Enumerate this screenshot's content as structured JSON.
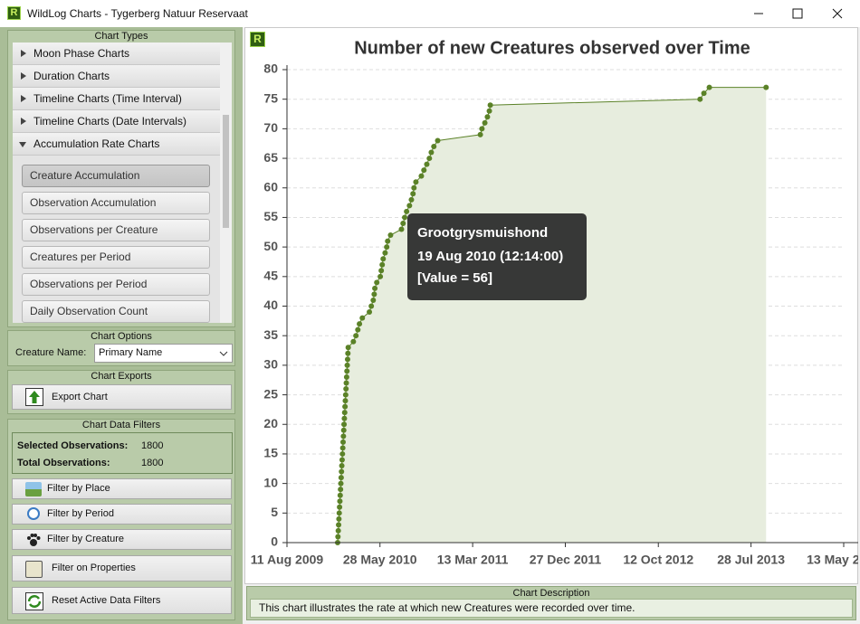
{
  "window": {
    "logo": "R",
    "title": "WildLog Charts - Tygerberg Natuur Reservaat"
  },
  "chart_types": {
    "title": "Chart Types",
    "groups": [
      "Moon Phase Charts",
      "Duration Charts",
      "Timeline Charts (Time Interval)",
      "Timeline Charts (Date Intervals)",
      "Accumulation Rate Charts"
    ],
    "buttons": [
      "Creature Accumulation",
      "Observation Accumulation",
      "Observations per Creature",
      "Creatures per Period",
      "Observations per Period",
      "Daily Observation Count"
    ]
  },
  "chart_options": {
    "title": "Chart Options",
    "label": "Creature Name:",
    "selected": "Primary Name"
  },
  "chart_exports": {
    "title": "Chart Exports",
    "button": "Export Chart"
  },
  "filters": {
    "title": "Chart Data Filters",
    "stats": [
      {
        "label": "Selected Observations:",
        "value": 1800
      },
      {
        "label": "Total Observations:",
        "value": 1800
      }
    ],
    "buttons": [
      "Filter by Place",
      "Filter by Period",
      "Filter by Creature",
      "Filter on Properties",
      "Reset Active Data Filters"
    ]
  },
  "chart_logo": "R",
  "chart_data": {
    "type": "line",
    "title": "Number of new Creatures observed over Time",
    "x": [
      "2010-01-16",
      "2010-01-17",
      "2010-01-18",
      "2010-01-19",
      "2010-01-20",
      "2010-01-21",
      "2010-01-22",
      "2010-01-23",
      "2010-01-24",
      "2010-01-25",
      "2010-01-26",
      "2010-01-27",
      "2010-01-28",
      "2010-01-29",
      "2010-01-30",
      "2010-01-31",
      "2010-02-01",
      "2010-02-02",
      "2010-02-03",
      "2010-02-04",
      "2010-02-05",
      "2010-02-06",
      "2010-02-07",
      "2010-02-08",
      "2010-02-09",
      "2010-02-10",
      "2010-02-11",
      "2010-02-12",
      "2010-02-13",
      "2010-02-14",
      "2010-02-15",
      "2010-02-16",
      "2010-02-17",
      "2010-02-18",
      "2010-03-06",
      "2010-03-14",
      "2010-03-20",
      "2010-03-25",
      "2010-04-03",
      "2010-04-25",
      "2010-05-01",
      "2010-05-07",
      "2010-05-10",
      "2010-05-12",
      "2010-05-18",
      "2010-05-29",
      "2010-06-01",
      "2010-06-04",
      "2010-06-07",
      "2010-06-13",
      "2010-06-18",
      "2010-06-21",
      "2010-06-30",
      "2010-08-03",
      "2010-08-08",
      "2010-08-13",
      "2010-08-19",
      "2010-08-28",
      "2010-09-03",
      "2010-09-08",
      "2010-09-11",
      "2010-09-17",
      "2010-10-04",
      "2010-10-12",
      "2010-10-21",
      "2010-10-29",
      "2010-11-04",
      "2010-11-12",
      "2010-11-24",
      "2011-04-06",
      "2011-04-11",
      "2011-04-20",
      "2011-04-28",
      "2011-05-04",
      "2011-05-07",
      "2013-02-19",
      "2013-03-03",
      "2013-03-20",
      "2013-09-13"
    ],
    "series": [
      {
        "color": "#5b8228",
        "area_color": "#e7edde",
        "values": [
          0,
          1,
          2,
          3,
          4,
          5,
          6,
          7,
          8,
          9,
          10,
          11,
          12,
          13,
          14,
          15,
          16,
          17,
          18,
          19,
          20,
          21,
          22,
          23,
          24,
          25,
          26,
          27,
          28,
          29,
          30,
          31,
          32,
          33,
          34,
          35,
          36,
          37,
          38,
          39,
          40,
          41,
          42,
          43,
          44,
          45,
          46,
          47,
          48,
          49,
          50,
          51,
          52,
          53,
          54,
          55,
          56,
          57,
          58,
          59,
          60,
          61,
          62,
          63,
          64,
          65,
          66,
          67,
          68,
          69,
          70,
          71,
          72,
          73,
          74,
          75,
          76,
          77,
          77
        ]
      }
    ],
    "xlim": [
      "2009-08-11",
      "2014-05-13"
    ],
    "xticks": [
      {
        "value": "2009-08-11",
        "label": "11 Aug 2009"
      },
      {
        "value": "2010-05-28",
        "label": "28 May 2010"
      },
      {
        "value": "2011-03-13",
        "label": "13 Mar 2011"
      },
      {
        "value": "2011-12-27",
        "label": "27 Dec 2011"
      },
      {
        "value": "2012-10-12",
        "label": "12 Oct 2012"
      },
      {
        "value": "2013-07-28",
        "label": "28 Jul 2013"
      },
      {
        "value": "2014-05-13",
        "label": "13 May 2014"
      }
    ],
    "ylim": [
      0,
      80
    ],
    "yticks": [
      0,
      5,
      10,
      15,
      20,
      25,
      30,
      35,
      40,
      45,
      50,
      55,
      60,
      65,
      70,
      75,
      80
    ],
    "grid": true
  },
  "tooltip": {
    "lines": [
      "Grootgrysmuishond",
      "19 Aug 2010 (12:14:00)",
      "[Value = 56]"
    ]
  },
  "description": {
    "title": "Chart Description",
    "text": "This chart illustrates the rate at which new Creatures were recorded over time."
  }
}
